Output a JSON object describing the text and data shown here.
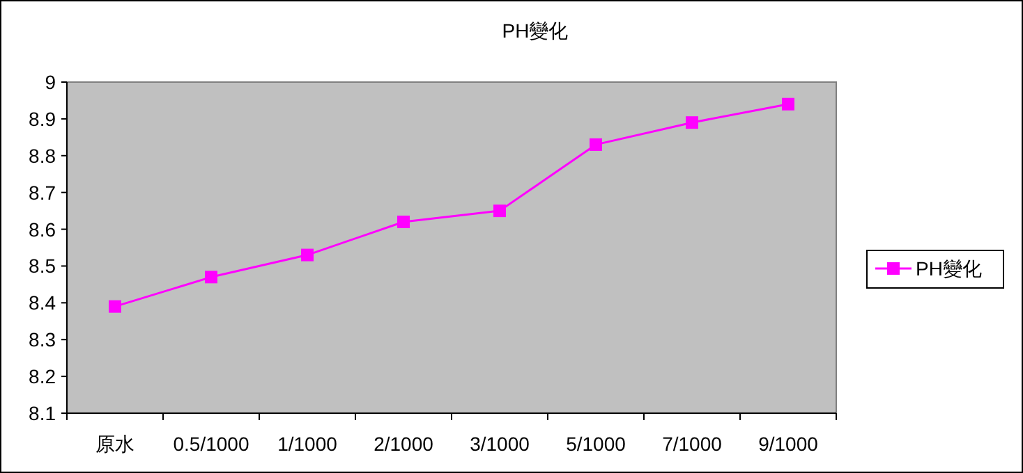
{
  "chart_data": {
    "type": "line",
    "title": "PH變化",
    "categories": [
      "原水",
      "0.5/1000",
      "1/1000",
      "2/1000",
      "3/1000",
      "5/1000",
      "7/1000",
      "9/1000"
    ],
    "series": [
      {
        "name": "PH變化",
        "color": "#ff00ff",
        "values": [
          8.39,
          8.47,
          8.53,
          8.62,
          8.65,
          8.83,
          8.89,
          8.94
        ]
      }
    ],
    "ylim": [
      8.1,
      9
    ],
    "yticks": [
      8.1,
      8.2,
      8.3,
      8.4,
      8.5,
      8.6,
      8.7,
      8.8,
      8.9,
      9
    ],
    "marker": "square",
    "legend": "right",
    "grid": false
  }
}
